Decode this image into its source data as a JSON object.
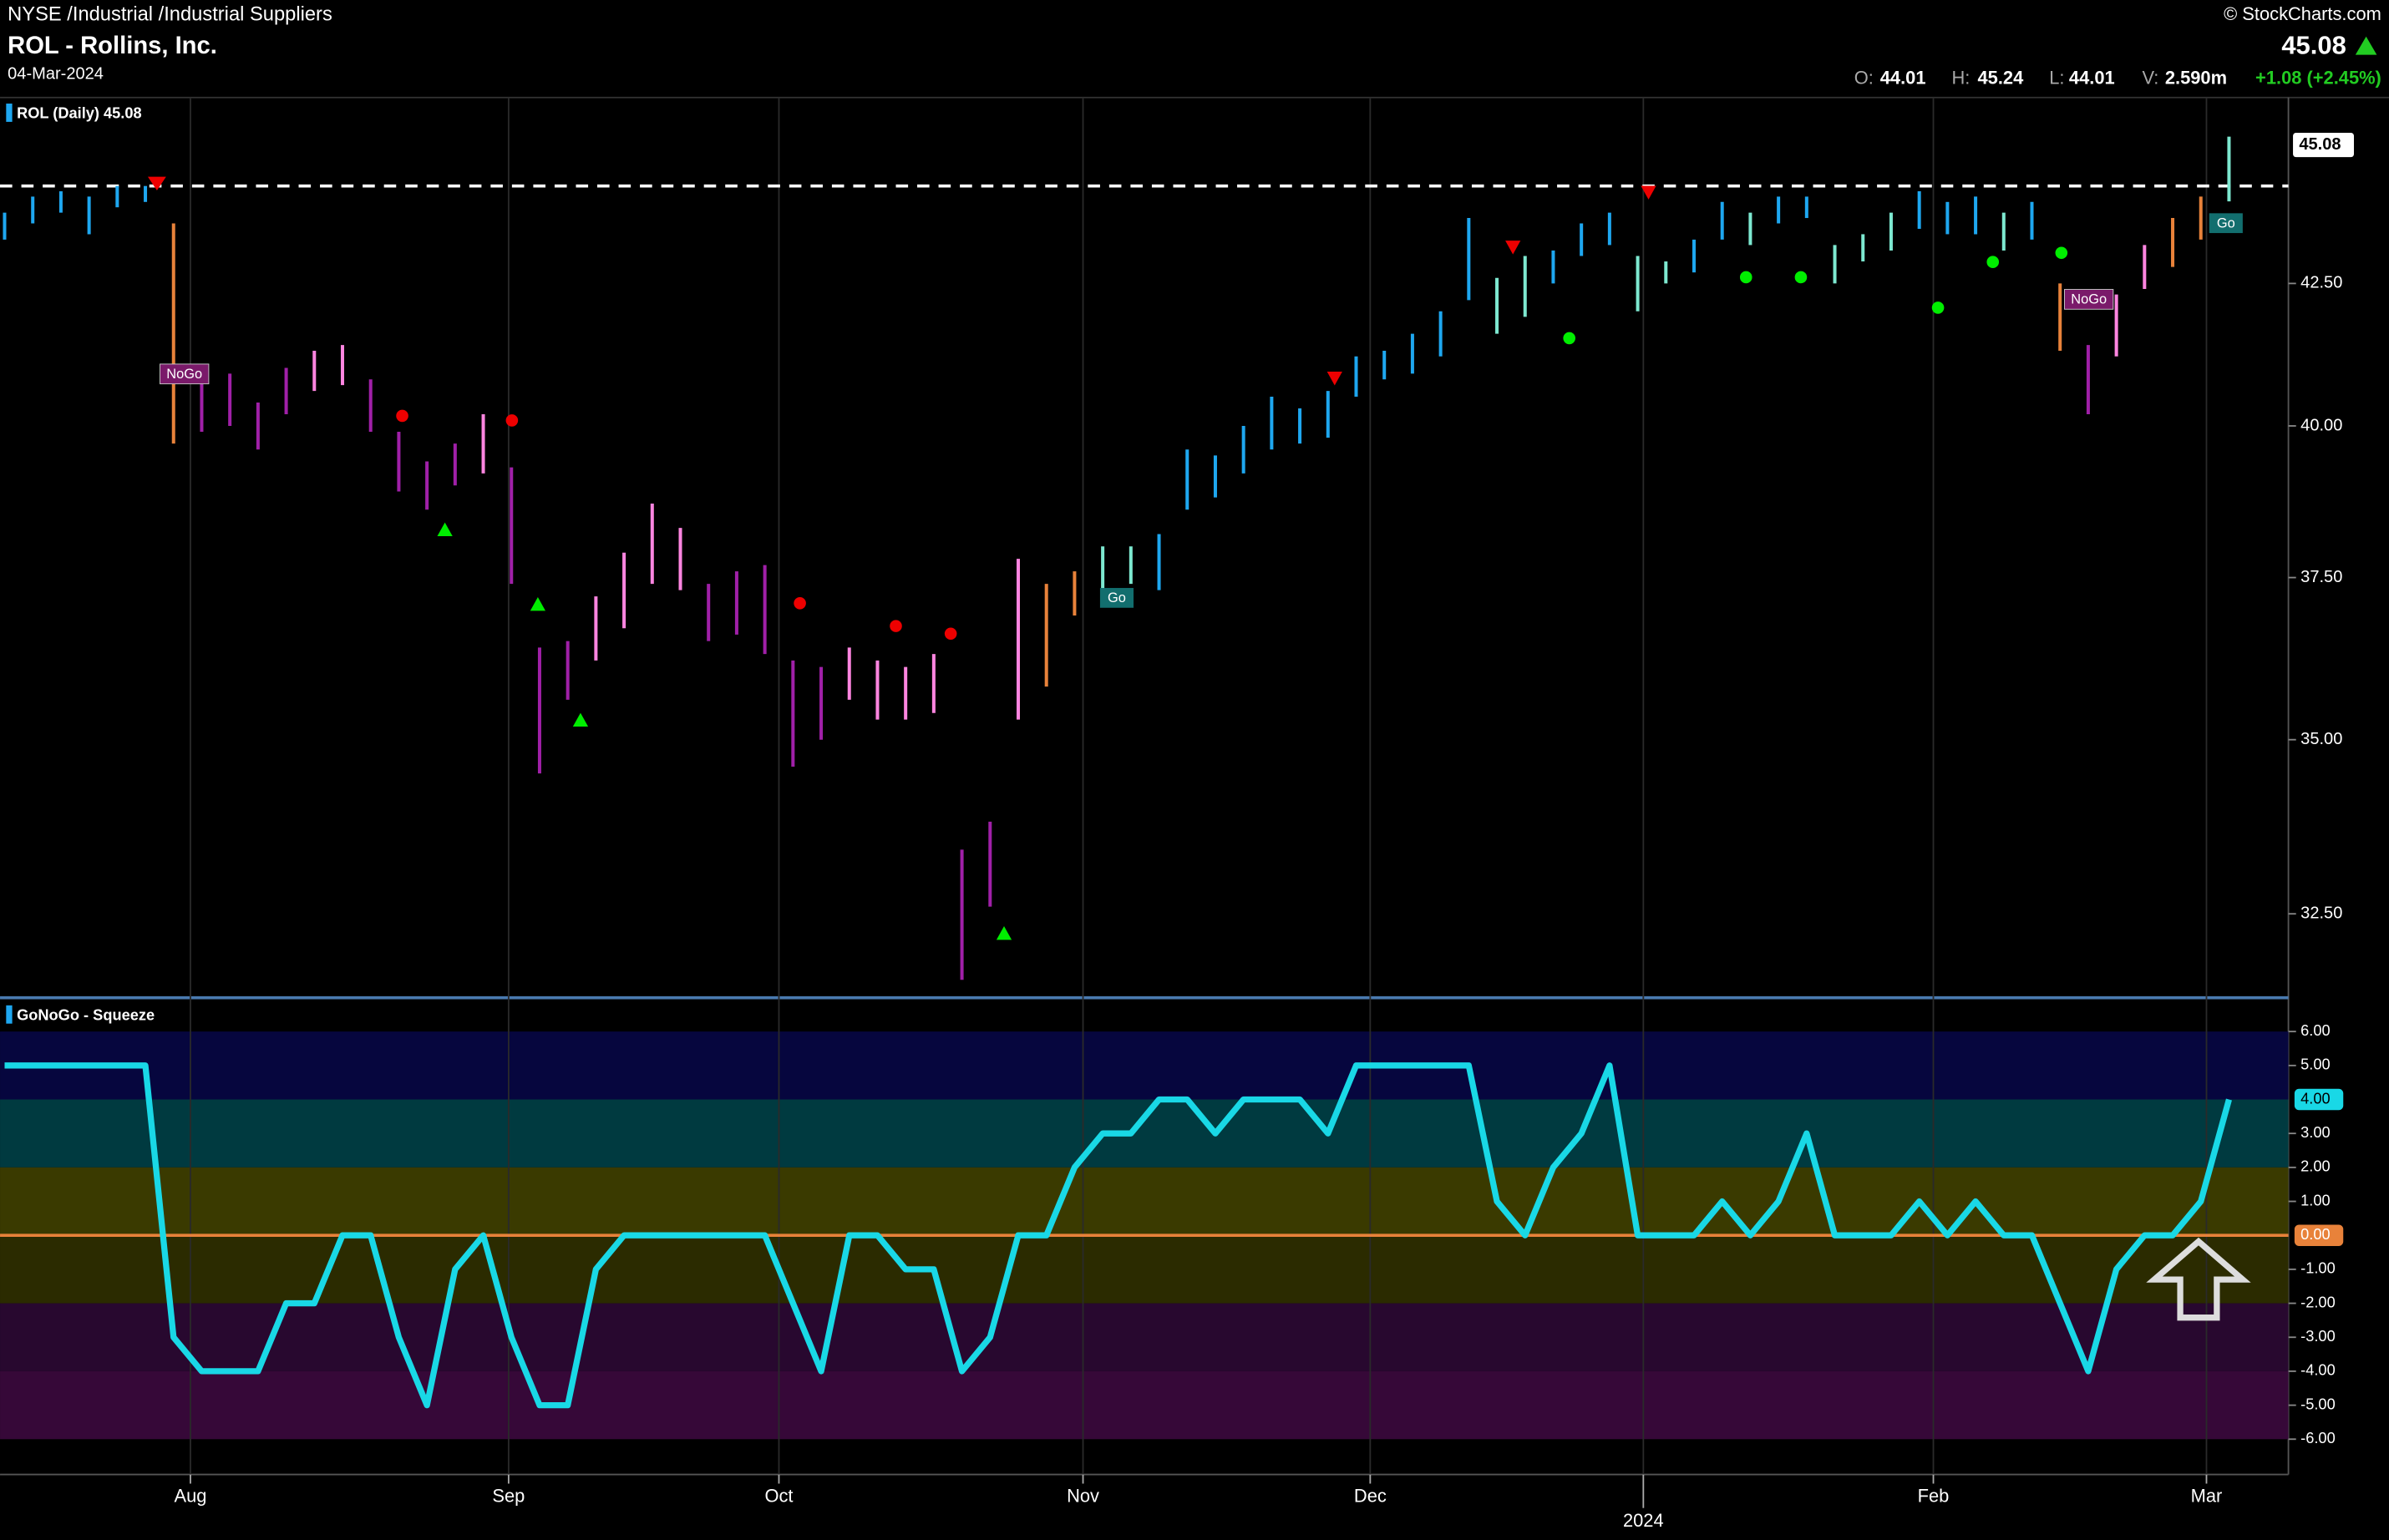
{
  "header": {
    "exchange": "NYSE /Industrial /Industrial Suppliers",
    "name": "ROL - Rollins, Inc.",
    "date": "04-Mar-2024",
    "source": "© StockCharts.com",
    "price": "45.08",
    "open_label": "O:",
    "open": "44.01",
    "high_label": "H:",
    "high": "45.24",
    "low_label": "L:",
    "low": "44.01",
    "volume_label": "V:",
    "volume": "2.590m",
    "change": "+1.08 (+2.45%)"
  },
  "chart_data": [
    {
      "type": "ohlc",
      "title": "ROL (Daily) 45.08",
      "log_scale": true,
      "high": [
        43.8,
        44.1,
        44.2,
        44.1,
        44.3,
        44.3,
        43.6,
        40.8,
        40.9,
        40.4,
        41.0,
        41.3,
        41.4,
        40.8,
        39.9,
        39.4,
        39.7,
        40.2,
        39.3,
        36.4,
        36.5,
        37.2,
        37.9,
        38.7,
        38.3,
        37.4,
        37.6,
        37.7,
        36.2,
        36.1,
        36.4,
        36.2,
        36.1,
        36.3,
        33.4,
        33.8,
        37.8,
        37.4,
        37.6,
        38.0,
        38.0,
        38.2,
        39.6,
        39.5,
        40.0,
        40.5,
        40.3,
        40.6,
        41.2,
        41.3,
        41.6,
        42.0,
        43.7,
        42.6,
        43.0,
        43.1,
        43.6,
        43.8,
        43.0,
        42.9,
        43.3,
        44.0,
        43.8,
        44.1,
        44.1,
        43.2,
        43.4,
        43.8,
        44.2,
        44.0,
        44.1,
        43.8,
        44.0,
        42.5,
        41.4,
        42.3,
        43.2,
        43.7,
        44.1,
        45.24
      ],
      "low": [
        43.3,
        43.6,
        43.8,
        43.4,
        43.9,
        44.0,
        39.7,
        39.9,
        40.0,
        39.6,
        40.2,
        40.6,
        40.7,
        39.9,
        38.9,
        38.6,
        39.0,
        39.2,
        37.4,
        34.5,
        35.6,
        36.2,
        36.7,
        37.4,
        37.3,
        36.5,
        36.6,
        36.3,
        34.6,
        35.0,
        35.6,
        35.3,
        35.3,
        35.4,
        31.6,
        32.6,
        35.3,
        35.8,
        36.9,
        37.2,
        37.4,
        37.3,
        38.6,
        38.8,
        39.2,
        39.6,
        39.7,
        39.8,
        40.5,
        40.8,
        40.9,
        41.2,
        42.2,
        41.6,
        41.9,
        42.5,
        43.0,
        43.2,
        42.0,
        42.5,
        42.7,
        43.3,
        43.2,
        43.6,
        43.7,
        42.5,
        42.9,
        43.1,
        43.5,
        43.4,
        43.4,
        43.1,
        43.3,
        41.3,
        40.2,
        41.2,
        42.4,
        42.8,
        43.3,
        44.01
      ],
      "colors": [
        "#1ea7f0",
        "#1ea7f0",
        "#1ea7f0",
        "#1ea7f0",
        "#1ea7f0",
        "#1ea7f0",
        "#e8823a",
        "#a020a8",
        "#a020a8",
        "#a020a8",
        "#a020a8",
        "#ff85e0",
        "#ff85e0",
        "#a020a8",
        "#a020a8",
        "#a020a8",
        "#a020a8",
        "#ff85e0",
        "#a020a8",
        "#a020a8",
        "#a020a8",
        "#ff85e0",
        "#ff85e0",
        "#ff85e0",
        "#ff85e0",
        "#a020a8",
        "#a020a8",
        "#a020a8",
        "#a020a8",
        "#a020a8",
        "#ff85e0",
        "#ff85e0",
        "#ff85e0",
        "#ff85e0",
        "#a020a8",
        "#a020a8",
        "#ff85e0",
        "#e8823a",
        "#e8823a",
        "#7de8d0",
        "#7de8d0",
        "#1ea7f0",
        "#1ea7f0",
        "#1ea7f0",
        "#1ea7f0",
        "#1ea7f0",
        "#1ea7f0",
        "#1ea7f0",
        "#1ea7f0",
        "#1ea7f0",
        "#1ea7f0",
        "#1ea7f0",
        "#1ea7f0",
        "#7de8d0",
        "#7de8d0",
        "#1ea7f0",
        "#1ea7f0",
        "#1ea7f0",
        "#7de8d0",
        "#7de8d0",
        "#1ea7f0",
        "#1ea7f0",
        "#7de8d0",
        "#1ea7f0",
        "#1ea7f0",
        "#7de8d0",
        "#7de8d0",
        "#7de8d0",
        "#1ea7f0",
        "#1ea7f0",
        "#1ea7f0",
        "#7de8d0",
        "#1ea7f0",
        "#e8823a",
        "#a020a8",
        "#ff85e0",
        "#ff85e0",
        "#e8823a",
        "#e8823a",
        "#7de8d0"
      ],
      "ylim": [
        31.36,
        46.0
      ],
      "yticks": [
        {
          "value": 32.5,
          "label": "32.50"
        },
        {
          "value": 35,
          "label": "35.00"
        },
        {
          "value": 37.5,
          "label": "37.50"
        },
        {
          "value": 40,
          "label": "40.00"
        },
        {
          "value": 42.5,
          "label": "42.50"
        }
      ],
      "resistance": 44.3,
      "last_price": {
        "value": 45.08,
        "label": "45.08"
      },
      "badges": [
        "NoGo",
        "Go",
        "NoGo",
        "Go"
      ]
    },
    {
      "type": "line",
      "title": "GoNoGo - Squeeze",
      "color": "#19d8e6",
      "values": [
        5,
        5,
        5,
        5,
        5,
        5,
        -3,
        -4,
        -4,
        -4,
        -2,
        -2,
        0,
        0,
        -3,
        -5,
        -1,
        0,
        -3,
        -5,
        -5,
        -1,
        0,
        0,
        0,
        0,
        0,
        0,
        -2,
        -4,
        0,
        0,
        -1,
        -1,
        -4,
        -3,
        0,
        0,
        2,
        3,
        3,
        4,
        4,
        3,
        4,
        4,
        4,
        3,
        5,
        5,
        5,
        5,
        5,
        1,
        0,
        2,
        3,
        5,
        0,
        0,
        0,
        1,
        0,
        1,
        3,
        0,
        0,
        0,
        1,
        0,
        1,
        0,
        0,
        -2,
        -4,
        -1,
        0,
        0,
        1,
        4
      ],
      "ylim": [
        -7.04,
        6.95
      ],
      "yticks": [
        {
          "value": 6,
          "label": "6.00"
        },
        {
          "value": 5,
          "label": "5.00"
        },
        {
          "value": 3,
          "label": "3.00"
        },
        {
          "value": 2,
          "label": "2.00"
        },
        {
          "value": 1,
          "label": "1.00"
        },
        {
          "value": 0,
          "label": "0.00"
        },
        {
          "value": -1,
          "label": "-1.00"
        },
        {
          "value": -2,
          "label": "-2.00"
        },
        {
          "value": -3,
          "label": "-3.00"
        },
        {
          "value": -4,
          "label": "-4.00"
        },
        {
          "value": -5,
          "label": "-5.00"
        },
        {
          "value": -6,
          "label": "-6.00"
        }
      ],
      "current_label": {
        "value": 4,
        "label": "4.00"
      },
      "bands": [
        {
          "from": 4,
          "to": 6,
          "color": "#06063e"
        },
        {
          "from": 2,
          "to": 4,
          "color": "#003a40"
        },
        {
          "from": 0,
          "to": 2,
          "color": "#3a3a00"
        },
        {
          "from": -2,
          "to": 0,
          "color": "#2b2b00"
        },
        {
          "from": -4,
          "to": -2,
          "color": "#28082f"
        },
        {
          "from": -6,
          "to": -4,
          "color": "#360838"
        }
      ],
      "xticks": [
        {
          "value": 6.6,
          "label": "Aug"
        },
        {
          "value": 17.9,
          "label": "Sep"
        },
        {
          "value": 27.5,
          "label": "Oct"
        },
        {
          "value": 38.3,
          "label": "Nov"
        },
        {
          "value": 48.5,
          "label": "Dec"
        },
        {
          "value": 68.5,
          "label": "Feb"
        },
        {
          "value": 78.2,
          "label": "Mar"
        }
      ],
      "year_tick": {
        "value": 58.2,
        "label": "2024"
      }
    }
  ]
}
